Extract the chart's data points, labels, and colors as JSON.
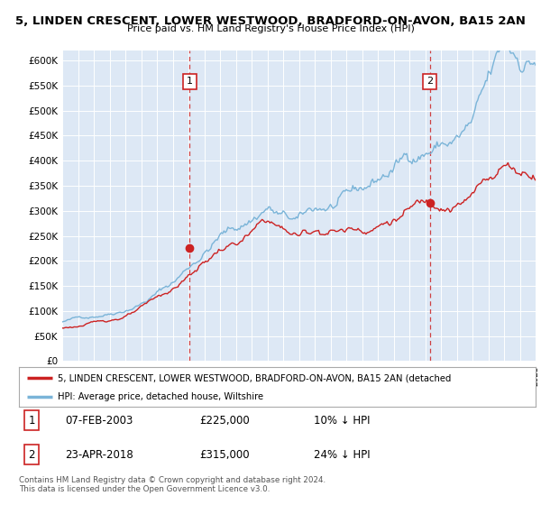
{
  "title": "5, LINDEN CRESCENT, LOWER WESTWOOD, BRADFORD-ON-AVON, BA15 2AN",
  "subtitle": "Price paid vs. HM Land Registry's House Price Index (HPI)",
  "ylabel_ticks": [
    "£0",
    "£50K",
    "£100K",
    "£150K",
    "£200K",
    "£250K",
    "£300K",
    "£350K",
    "£400K",
    "£450K",
    "£500K",
    "£550K",
    "£600K"
  ],
  "ylim": [
    0,
    620000
  ],
  "ytick_vals": [
    0,
    50000,
    100000,
    150000,
    200000,
    250000,
    300000,
    350000,
    400000,
    450000,
    500000,
    550000,
    600000
  ],
  "hpi_color": "#7ab4d8",
  "price_color": "#cc2222",
  "dashed_line_color": "#cc2222",
  "bg_color": "#dde8f5",
  "legend_label_red": "5, LINDEN CRESCENT, LOWER WESTWOOD, BRADFORD-ON-AVON, BA15 2AN (detached",
  "legend_label_blue": "HPI: Average price, detached house, Wiltshire",
  "sale1_date": "07-FEB-2003",
  "sale1_price": 225000,
  "sale1_pct": "10% ↓ HPI",
  "sale2_date": "23-APR-2018",
  "sale2_price": 315000,
  "sale2_pct": "24% ↓ HPI",
  "footnote": "Contains HM Land Registry data © Crown copyright and database right 2024.\nThis data is licensed under the Open Government Licence v3.0.",
  "marker1_x": 2003.08,
  "marker1_y": 225000,
  "marker2_x": 2018.3,
  "marker2_y": 315000,
  "xmin": 1995,
  "xmax": 2025
}
